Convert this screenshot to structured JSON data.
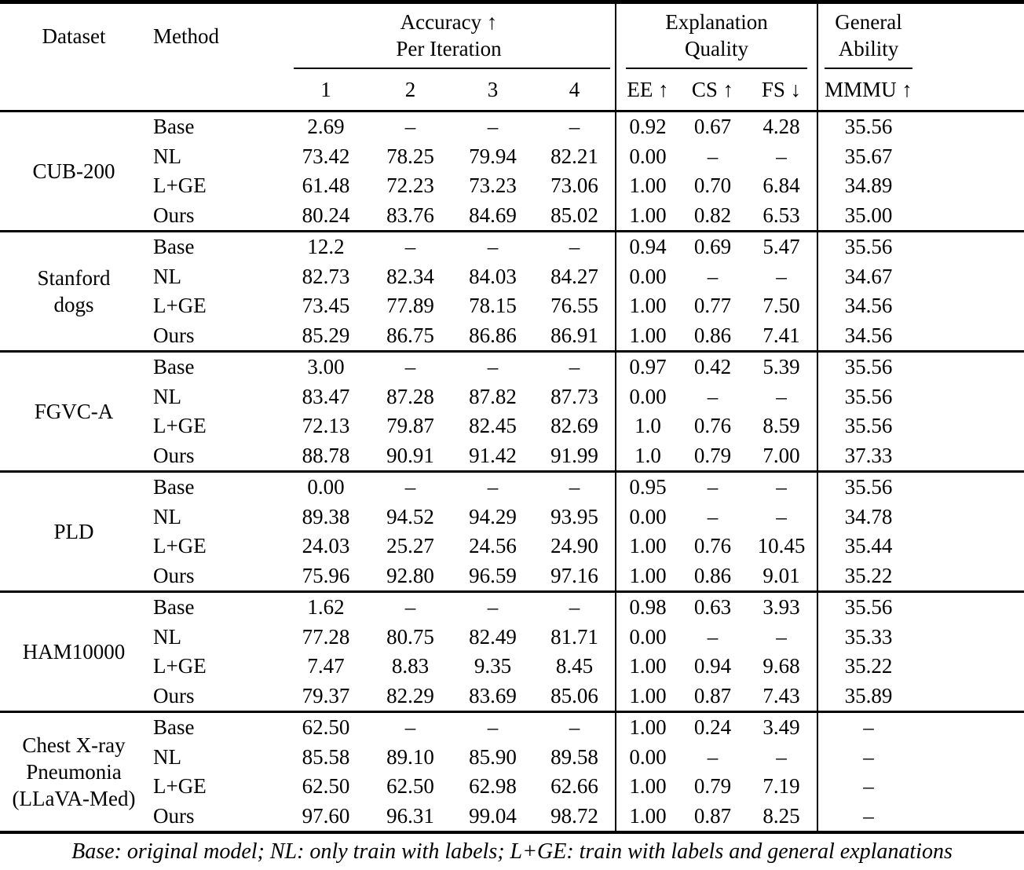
{
  "table": {
    "header": {
      "dataset": "Dataset",
      "method": "Method",
      "groups": [
        {
          "lines": [
            "Accuracy ↑",
            "Per Iteration"
          ]
        },
        {
          "lines": [
            "Explanation",
            "Quality"
          ]
        },
        {
          "lines": [
            "General",
            "Ability"
          ]
        }
      ],
      "subcols": {
        "iterations": [
          "1",
          "2",
          "3",
          "4"
        ],
        "explanation": [
          "EE ↑",
          "CS ↑",
          "FS ↓"
        ],
        "general": [
          "MMMU ↑"
        ]
      }
    },
    "body": [
      {
        "dataset_lines": [
          "CUB-200"
        ],
        "rows": [
          {
            "method": "Base",
            "values": [
              "2.69",
              "–",
              "–",
              "–",
              "0.92",
              "0.67",
              "4.28",
              "35.56"
            ]
          },
          {
            "method": "NL",
            "values": [
              "73.42",
              "78.25",
              "79.94",
              "82.21",
              "0.00",
              "–",
              "–",
              "35.67"
            ]
          },
          {
            "method": "L+GE",
            "values": [
              "61.48",
              "72.23",
              "73.23",
              "73.06",
              "1.00",
              "0.70",
              "6.84",
              "34.89"
            ]
          },
          {
            "method": "Ours",
            "values": [
              "80.24",
              "83.76",
              "84.69",
              "85.02",
              "1.00",
              "0.82",
              "6.53",
              "35.00"
            ]
          }
        ]
      },
      {
        "dataset_lines": [
          "Stanford",
          "dogs"
        ],
        "rows": [
          {
            "method": "Base",
            "values": [
              "12.2",
              "–",
              "–",
              "–",
              "0.94",
              "0.69",
              "5.47",
              "35.56"
            ]
          },
          {
            "method": "NL",
            "values": [
              "82.73",
              "82.34",
              "84.03",
              "84.27",
              "0.00",
              "–",
              "–",
              "34.67"
            ]
          },
          {
            "method": "L+GE",
            "values": [
              "73.45",
              "77.89",
              "78.15",
              "76.55",
              "1.00",
              "0.77",
              "7.50",
              "34.56"
            ]
          },
          {
            "method": "Ours",
            "values": [
              "85.29",
              "86.75",
              "86.86",
              "86.91",
              "1.00",
              "0.86",
              "7.41",
              "34.56"
            ]
          }
        ]
      },
      {
        "dataset_lines": [
          "FGVC-A"
        ],
        "rows": [
          {
            "method": "Base",
            "values": [
              "3.00",
              "–",
              "–",
              "–",
              "0.97",
              "0.42",
              "5.39",
              "35.56"
            ]
          },
          {
            "method": "NL",
            "values": [
              "83.47",
              "87.28",
              "87.82",
              "87.73",
              "0.00",
              "–",
              "–",
              "35.56"
            ]
          },
          {
            "method": "L+GE",
            "values": [
              "72.13",
              "79.87",
              "82.45",
              "82.69",
              "1.0",
              "0.76",
              "8.59",
              "35.56"
            ]
          },
          {
            "method": "Ours",
            "values": [
              "88.78",
              "90.91",
              "91.42",
              "91.99",
              "1.0",
              "0.79",
              "7.00",
              "37.33"
            ]
          }
        ]
      },
      {
        "dataset_lines": [
          "PLD"
        ],
        "rows": [
          {
            "method": "Base",
            "values": [
              "0.00",
              "–",
              "–",
              "–",
              "0.95",
              "–",
              "–",
              "35.56"
            ]
          },
          {
            "method": "NL",
            "values": [
              "89.38",
              "94.52",
              "94.29",
              "93.95",
              "0.00",
              "–",
              "–",
              "34.78"
            ]
          },
          {
            "method": "L+GE",
            "values": [
              "24.03",
              "25.27",
              "24.56",
              "24.90",
              "1.00",
              "0.76",
              "10.45",
              "35.44"
            ]
          },
          {
            "method": "Ours",
            "values": [
              "75.96",
              "92.80",
              "96.59",
              "97.16",
              "1.00",
              "0.86",
              "9.01",
              "35.22"
            ]
          }
        ]
      },
      {
        "dataset_lines": [
          "HAM10000"
        ],
        "rows": [
          {
            "method": "Base",
            "values": [
              "1.62",
              "–",
              "–",
              "–",
              "0.98",
              "0.63",
              "3.93",
              "35.56"
            ]
          },
          {
            "method": "NL",
            "values": [
              "77.28",
              "80.75",
              "82.49",
              "81.71",
              "0.00",
              "–",
              "–",
              "35.33"
            ]
          },
          {
            "method": "L+GE",
            "values": [
              "7.47",
              "8.83",
              "9.35",
              "8.45",
              "1.00",
              "0.94",
              "9.68",
              "35.22"
            ]
          },
          {
            "method": "Ours",
            "values": [
              "79.37",
              "82.29",
              "83.69",
              "85.06",
              "1.00",
              "0.87",
              "7.43",
              "35.89"
            ]
          }
        ]
      },
      {
        "dataset_lines": [
          "Chest X-ray",
          "Pneumonia",
          "(LLaVA-Med)"
        ],
        "rows": [
          {
            "method": "Base",
            "values": [
              "62.50",
              "–",
              "–",
              "–",
              "1.00",
              "0.24",
              "3.49",
              "–"
            ]
          },
          {
            "method": "NL",
            "values": [
              "85.58",
              "89.10",
              "85.90",
              "89.58",
              "0.00",
              "–",
              "–",
              "–"
            ]
          },
          {
            "method": "L+GE",
            "values": [
              "62.50",
              "62.50",
              "62.98",
              "62.66",
              "1.00",
              "0.79",
              "7.19",
              "–"
            ]
          },
          {
            "method": "Ours",
            "values": [
              "97.60",
              "96.31",
              "99.04",
              "98.72",
              "1.00",
              "0.87",
              "8.25",
              "–"
            ]
          }
        ]
      }
    ],
    "footnote": "Base: original model; NL: only train with labels; L+GE: train with labels and general explanations"
  }
}
